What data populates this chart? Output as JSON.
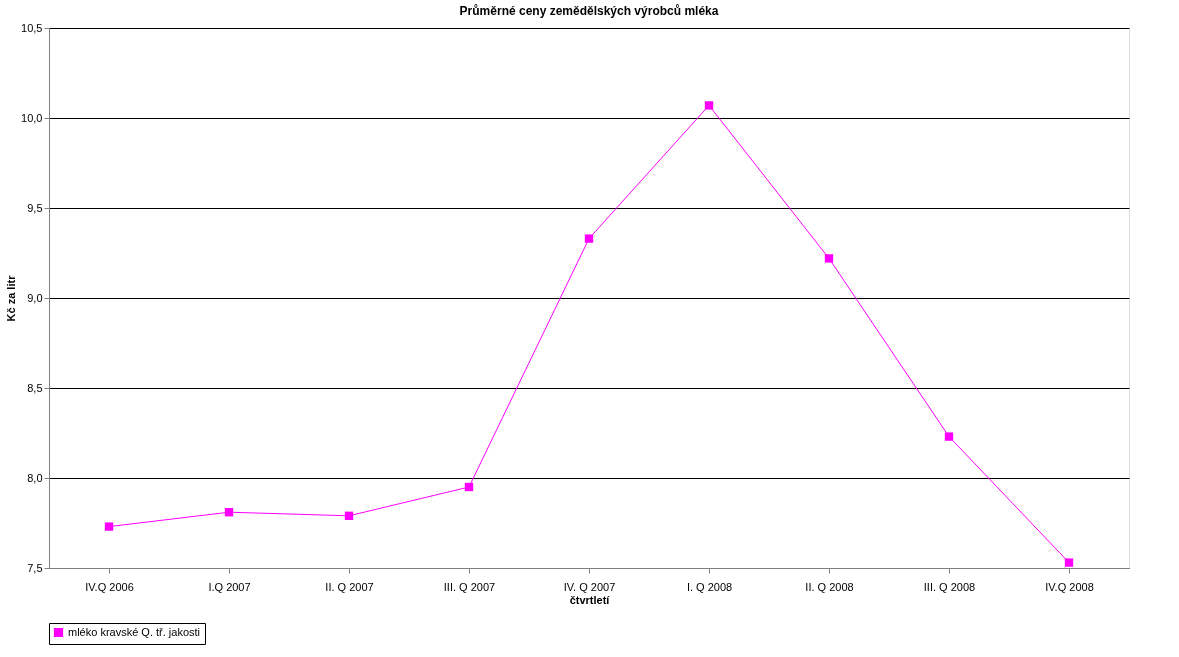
{
  "chart_data": {
    "type": "line",
    "title": "Průměrné ceny zemědělských výrobců mléka",
    "xlabel": "čtvrtletí",
    "ylabel": "Kč za litr",
    "categories": [
      "IV.Q 2006",
      "I.Q 2007",
      "II. Q 2007",
      "III. Q 2007",
      "IV. Q 2007",
      "I. Q 2008",
      "II. Q 2008",
      "III. Q 2008",
      "IV.Q 2008"
    ],
    "series": [
      {
        "name": "mléko kravské Q. tř. jakosti",
        "color": "#ff00ff",
        "values": [
          7.73,
          7.81,
          7.79,
          7.95,
          9.33,
          10.07,
          9.22,
          8.23,
          7.53
        ]
      }
    ],
    "ylim": [
      7.5,
      10.5
    ],
    "yticks": [
      {
        "value": 7.5,
        "label": "7,5"
      },
      {
        "value": 8.0,
        "label": "8,0"
      },
      {
        "value": 8.5,
        "label": "8,5"
      },
      {
        "value": 9.0,
        "label": "9,0"
      },
      {
        "value": 9.5,
        "label": "9,5"
      },
      {
        "value": 10.0,
        "label": "10,0"
      },
      {
        "value": 10.5,
        "label": "10,5"
      }
    ],
    "grid": "y",
    "legend": "bottom",
    "marker": "square",
    "line_style": "solid"
  }
}
